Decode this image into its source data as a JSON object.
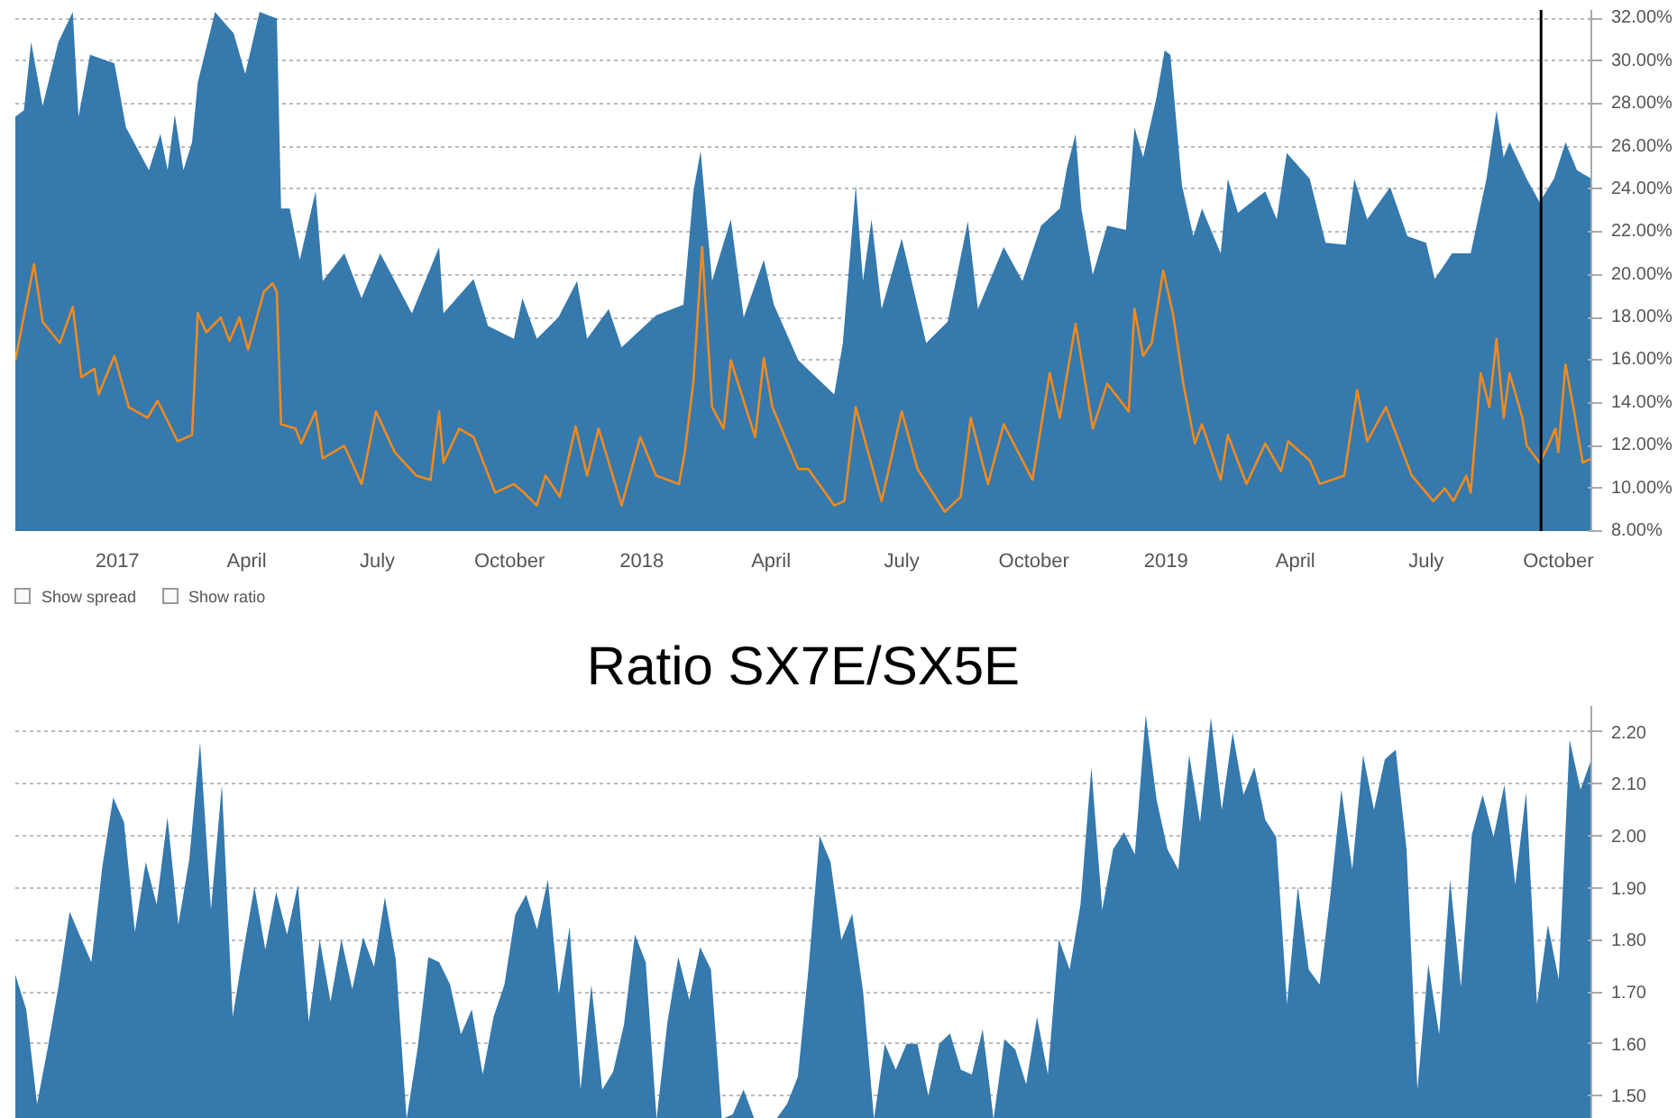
{
  "chart_data": [
    {
      "type": "area",
      "xlim": [
        "2016-10-22",
        "2019-10-24"
      ],
      "xticks": [
        {
          "value": "2017-01-01",
          "label": "2017"
        },
        {
          "value": "2017-04-01",
          "label": "April"
        },
        {
          "value": "2017-07-01",
          "label": "July"
        },
        {
          "value": "2017-10-01",
          "label": "October"
        },
        {
          "value": "2018-01-01",
          "label": "2018"
        },
        {
          "value": "2018-04-01",
          "label": "April"
        },
        {
          "value": "2018-07-01",
          "label": "July"
        },
        {
          "value": "2018-10-01",
          "label": "October"
        },
        {
          "value": "2019-01-01",
          "label": "2019"
        },
        {
          "value": "2019-04-01",
          "label": "April"
        },
        {
          "value": "2019-07-01",
          "label": "July"
        },
        {
          "value": "2019-10-01",
          "label": "October"
        }
      ],
      "ylim": [
        8,
        32.4
      ],
      "yticks": [
        {
          "value": 8,
          "label": "8.00%"
        },
        {
          "value": 10,
          "label": "10.00%"
        },
        {
          "value": 12,
          "label": "12.00%"
        },
        {
          "value": 14,
          "label": "14.00%"
        },
        {
          "value": 16,
          "label": "16.00%"
        },
        {
          "value": 18,
          "label": "18.00%"
        },
        {
          "value": 20,
          "label": "20.00%"
        },
        {
          "value": 22,
          "label": "22.00%"
        },
        {
          "value": 24,
          "label": "24.00%"
        },
        {
          "value": 26,
          "label": "26.00%"
        },
        {
          "value": 28,
          "label": "28.00%"
        },
        {
          "value": 30,
          "label": "30.00%"
        },
        {
          "value": 32,
          "label": "32.00%"
        }
      ],
      "grid": "y",
      "series": [
        {
          "color": "#3579ad",
          "x": [
            "2016-10-22",
            "2016-10-28",
            "2016-11-02",
            "2016-11-10",
            "2016-11-21",
            "2016-12-01",
            "2016-12-05",
            "2016-12-13",
            "2016-12-30",
            "2017-01-07",
            "2017-01-23",
            "2017-01-31",
            "2017-02-05",
            "2017-02-10",
            "2017-02-16",
            "2017-02-22",
            "2017-02-26",
            "2017-03-10",
            "2017-03-23",
            "2017-03-31",
            "2017-04-10",
            "2017-04-22",
            "2017-04-25",
            "2017-05-01",
            "2017-05-08",
            "2017-05-19",
            "2017-05-24",
            "2017-06-08",
            "2017-06-20",
            "2017-07-03",
            "2017-07-25",
            "2017-08-13",
            "2017-08-16",
            "2017-09-06",
            "2017-09-16",
            "2017-10-04",
            "2017-10-10",
            "2017-10-20",
            "2017-11-04",
            "2017-11-17",
            "2017-11-24",
            "2017-12-09",
            "2017-12-18",
            "2018-01-11",
            "2018-01-30",
            "2018-02-06",
            "2018-02-11",
            "2018-02-19",
            "2018-03-04",
            "2018-03-13",
            "2018-03-27",
            "2018-04-03",
            "2018-04-20",
            "2018-05-15",
            "2018-05-21",
            "2018-05-30",
            "2018-06-04",
            "2018-06-10",
            "2018-06-17",
            "2018-07-01",
            "2018-07-18",
            "2018-08-02",
            "2018-08-16",
            "2018-08-23",
            "2018-09-10",
            "2018-09-23",
            "2018-10-06",
            "2018-10-19",
            "2018-10-24",
            "2018-10-30",
            "2018-11-03",
            "2018-11-11",
            "2018-11-21",
            "2018-12-04",
            "2018-12-10",
            "2018-12-16",
            "2018-12-25",
            "2018-12-31",
            "2019-01-04",
            "2019-01-12",
            "2019-01-20",
            "2019-01-26",
            "2019-02-08",
            "2019-02-13",
            "2019-02-20",
            "2019-03-11",
            "2019-03-19",
            "2019-03-26",
            "2019-04-11",
            "2019-04-22",
            "2019-05-06",
            "2019-05-12",
            "2019-05-21",
            "2019-06-06",
            "2019-06-18",
            "2019-07-01",
            "2019-07-07",
            "2019-07-19",
            "2019-08-01",
            "2019-08-12",
            "2019-08-19",
            "2019-08-24",
            "2019-08-28",
            "2019-09-09",
            "2019-09-18",
            "2019-09-28",
            "2019-10-06",
            "2019-10-14",
            "2019-10-24"
          ],
          "values": [
            27.4,
            27.7,
            30.9,
            27.9,
            30.9,
            32.3,
            27.4,
            30.3,
            29.9,
            26.9,
            24.9,
            26.6,
            24.9,
            27.5,
            24.9,
            26.2,
            29.0,
            32.3,
            31.3,
            29.4,
            32.3,
            32.0,
            23.1,
            23.1,
            20.7,
            23.9,
            19.7,
            21.0,
            18.9,
            21.0,
            18.2,
            21.3,
            18.2,
            19.8,
            17.6,
            17.0,
            18.9,
            17.0,
            18.0,
            19.7,
            17.0,
            18.4,
            16.6,
            18.1,
            18.6,
            23.9,
            25.8,
            19.7,
            22.6,
            18.0,
            20.7,
            18.6,
            16.0,
            14.4,
            16.8,
            24.2,
            19.7,
            22.6,
            18.4,
            21.7,
            16.8,
            17.8,
            22.5,
            18.4,
            21.3,
            19.7,
            22.3,
            23.1,
            25.0,
            26.6,
            23.1,
            20.0,
            22.3,
            22.1,
            26.9,
            25.5,
            28.2,
            30.5,
            30.3,
            24.2,
            21.8,
            23.1,
            21.0,
            24.5,
            22.9,
            23.9,
            22.6,
            25.7,
            24.5,
            21.5,
            21.4,
            24.5,
            22.6,
            24.1,
            21.8,
            21.5,
            19.8,
            21.0,
            21.0,
            24.5,
            27.7,
            25.5,
            26.2,
            24.5,
            23.4,
            24.5,
            26.2,
            24.9,
            24.5
          ]
        },
        {
          "type": "line",
          "color": "#f28a1e",
          "x": [
            "2016-10-22",
            "2016-11-04",
            "2016-11-10",
            "2016-11-22",
            "2016-12-01",
            "2016-12-07",
            "2016-12-16",
            "2016-12-19",
            "2016-12-30",
            "2017-01-09",
            "2017-01-22",
            "2017-01-29",
            "2017-02-12",
            "2017-02-22",
            "2017-02-26",
            "2017-03-04",
            "2017-03-14",
            "2017-03-20",
            "2017-03-27",
            "2017-04-02",
            "2017-04-13",
            "2017-04-19",
            "2017-04-22",
            "2017-04-25",
            "2017-05-05",
            "2017-05-09",
            "2017-05-19",
            "2017-05-24",
            "2017-06-08",
            "2017-06-20",
            "2017-06-30",
            "2017-07-13",
            "2017-07-28",
            "2017-08-07",
            "2017-08-13",
            "2017-08-16",
            "2017-08-27",
            "2017-09-06",
            "2017-09-21",
            "2017-10-04",
            "2017-10-11",
            "2017-10-20",
            "2017-10-26",
            "2017-11-05",
            "2017-11-16",
            "2017-11-24",
            "2017-12-02",
            "2017-12-18",
            "2017-12-31",
            "2018-01-11",
            "2018-01-27",
            "2018-01-31",
            "2018-02-06",
            "2018-02-12",
            "2018-02-19",
            "2018-02-27",
            "2018-03-04",
            "2018-03-21",
            "2018-03-27",
            "2018-04-02",
            "2018-04-20",
            "2018-04-27",
            "2018-05-15",
            "2018-05-22",
            "2018-05-30",
            "2018-06-17",
            "2018-07-01",
            "2018-07-12",
            "2018-07-31",
            "2018-08-11",
            "2018-08-18",
            "2018-08-30",
            "2018-09-10",
            "2018-09-30",
            "2018-10-12",
            "2018-10-19",
            "2018-10-30",
            "2018-11-11",
            "2018-11-21",
            "2018-12-06",
            "2018-12-10",
            "2018-12-16",
            "2018-12-22",
            "2018-12-30",
            "2019-01-06",
            "2019-01-13",
            "2019-01-21",
            "2019-01-26",
            "2019-02-08",
            "2019-02-13",
            "2019-02-26",
            "2019-03-11",
            "2019-03-22",
            "2019-03-27",
            "2019-04-11",
            "2019-04-18",
            "2019-05-05",
            "2019-05-14",
            "2019-05-21",
            "2019-06-03",
            "2019-06-21",
            "2019-07-06",
            "2019-07-14",
            "2019-07-20",
            "2019-07-29",
            "2019-08-01",
            "2019-08-08",
            "2019-08-14",
            "2019-08-19",
            "2019-08-24",
            "2019-08-28",
            "2019-09-06",
            "2019-09-09",
            "2019-09-18",
            "2019-09-24",
            "2019-09-29",
            "2019-10-01",
            "2019-10-06",
            "2019-10-12",
            "2019-10-18",
            "2019-10-24"
          ],
          "values": [
            16.0,
            20.5,
            17.8,
            16.8,
            18.5,
            15.2,
            15.6,
            14.4,
            16.2,
            13.8,
            13.3,
            14.1,
            12.2,
            12.5,
            18.2,
            17.3,
            18.0,
            16.9,
            18.0,
            16.5,
            19.2,
            19.6,
            19.2,
            13.0,
            12.8,
            12.1,
            13.6,
            11.4,
            12.0,
            10.2,
            13.6,
            11.7,
            10.6,
            10.4,
            13.6,
            11.2,
            12.8,
            12.4,
            9.8,
            10.2,
            9.8,
            9.2,
            10.6,
            9.6,
            12.9,
            10.6,
            12.8,
            9.2,
            12.4,
            10.6,
            10.2,
            11.7,
            15.0,
            21.3,
            13.8,
            12.8,
            16.0,
            12.4,
            16.1,
            13.8,
            10.9,
            10.9,
            9.2,
            9.4,
            13.8,
            9.4,
            13.6,
            10.9,
            8.9,
            9.6,
            13.3,
            10.2,
            13.0,
            10.4,
            15.4,
            13.3,
            17.7,
            12.8,
            14.9,
            13.6,
            18.4,
            16.2,
            16.8,
            20.2,
            18.1,
            14.9,
            12.1,
            13.0,
            10.4,
            12.5,
            10.2,
            12.1,
            10.8,
            12.2,
            11.3,
            10.2,
            10.6,
            14.6,
            12.2,
            13.8,
            10.6,
            9.4,
            10.0,
            9.4,
            10.6,
            9.8,
            15.4,
            13.8,
            17.0,
            13.3,
            15.4,
            13.3,
            12.0,
            11.2,
            12.0,
            12.8,
            11.7,
            15.8,
            13.6,
            11.2,
            11.4
          ]
        }
      ],
      "ref_lines": [
        {
          "axis": "x",
          "value": "2019-09-19",
          "color": "#000000"
        }
      ],
      "annotations": [
        "Show spread",
        "Show ratio"
      ]
    },
    {
      "type": "area",
      "title": "Ratio SX7E/SX5E",
      "categories": [
        null,
        null,
        null,
        null,
        null,
        null,
        null,
        null,
        null,
        null,
        null,
        null,
        null,
        null,
        null,
        null,
        null,
        null,
        null,
        null,
        null,
        null,
        null,
        null,
        null,
        null,
        null,
        null,
        null,
        null,
        null,
        null,
        null,
        null,
        null,
        null,
        null,
        null,
        null,
        null,
        null,
        null,
        null,
        null,
        null,
        null,
        null,
        null,
        null,
        null,
        null,
        null,
        null,
        null,
        null,
        null,
        null,
        null,
        null,
        null,
        null,
        null,
        null,
        null,
        null,
        null,
        null,
        null,
        null,
        null,
        null,
        null,
        null,
        null,
        null,
        null,
        null,
        null,
        null,
        null,
        null,
        null,
        null,
        null,
        null,
        null,
        null,
        null,
        null,
        null,
        null,
        null,
        null,
        null,
        null,
        null,
        null,
        null,
        null,
        null,
        null,
        null,
        null,
        null,
        null,
        null,
        null,
        null,
        null,
        null,
        null,
        null,
        null,
        null,
        null,
        null,
        null,
        null,
        null,
        null,
        null,
        null,
        null,
        null,
        null,
        null,
        null,
        null,
        null,
        null,
        null,
        null,
        null,
        null,
        null,
        null,
        null,
        null,
        null,
        null,
        null,
        null,
        null,
        null,
        null,
        null
      ],
      "ylim": [
        1.445,
        2.25
      ],
      "yticks": [
        {
          "value": 1.5,
          "label": "1.50"
        },
        {
          "value": 1.6,
          "label": "1.60"
        },
        {
          "value": 1.7,
          "label": "1.70"
        },
        {
          "value": 1.8,
          "label": "1.80"
        },
        {
          "value": 1.9,
          "label": "1.90"
        },
        {
          "value": 2.0,
          "label": "2.00"
        },
        {
          "value": 2.1,
          "label": "2.10"
        },
        {
          "value": 2.2,
          "label": "2.20"
        }
      ],
      "tick_labels": "y",
      "grid": "y",
      "series": [
        {
          "color": "#3579ad",
          "values": [
            1.733,
            1.666,
            1.484,
            1.594,
            1.714,
            1.854,
            1.805,
            1.757,
            1.94,
            2.074,
            2.026,
            1.815,
            1.95,
            1.868,
            2.036,
            1.829,
            1.954,
            2.18,
            1.858,
            2.098,
            1.652,
            1.781,
            1.902,
            1.781,
            1.892,
            1.81,
            1.906,
            1.642,
            1.801,
            1.681,
            1.801,
            1.705,
            1.805,
            1.748,
            1.882,
            1.762,
            1.455,
            1.589,
            1.767,
            1.757,
            1.714,
            1.618,
            1.666,
            1.541,
            1.652,
            1.714,
            1.849,
            1.887,
            1.82,
            1.916,
            1.695,
            1.825,
            1.512,
            1.714,
            1.512,
            1.546,
            1.637,
            1.81,
            1.757,
            1.455,
            1.642,
            1.767,
            1.685,
            1.786,
            1.743,
            1.455,
            1.464,
            1.512,
            1.455,
            1.455,
            1.455,
            1.484,
            1.537,
            1.75,
            2.0,
            1.95,
            1.8,
            1.85,
            1.7,
            1.455,
            1.6,
            1.55,
            1.6,
            1.6,
            1.5,
            1.6,
            1.62,
            1.55,
            1.541,
            1.628,
            1.455,
            1.609,
            1.589,
            1.522,
            1.652,
            1.541,
            1.801,
            1.743,
            1.868,
            2.132,
            1.858,
            1.974,
            2.007,
            1.964,
            2.233,
            2.07,
            1.974,
            1.935,
            2.156,
            2.026,
            2.228,
            2.05,
            2.199,
            2.079,
            2.132,
            2.031,
            1.998,
            1.676,
            1.902,
            1.743,
            1.714,
            1.887,
            2.089,
            1.935,
            2.156,
            2.05,
            2.147,
            2.166,
            1.974,
            1.512,
            1.753,
            1.618,
            1.916,
            1.709,
            2.002,
            2.079,
            1.998,
            2.098,
            1.906,
            2.084,
            1.676,
            1.829,
            1.724,
            2.185,
            2.089,
            2.147
          ]
        }
      ]
    }
  ]
}
